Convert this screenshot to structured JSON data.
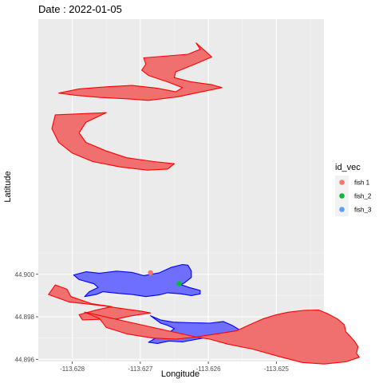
{
  "chart_data": {
    "type": "map",
    "title": "Date : 2022-01-05",
    "xlabel": "Longitude",
    "ylabel": "Latitude",
    "xlim": [
      -113.6285,
      -113.6243
    ],
    "ylim": [
      44.8959,
      44.912
    ],
    "x_ticks": [
      -113.628,
      -113.627,
      -113.626,
      -113.625
    ],
    "x_tick_labels": [
      "-113.628",
      "-113.627",
      "-113.626",
      "-113.625"
    ],
    "y_ticks": [
      44.896,
      44.898,
      44.9
    ],
    "y_tick_labels": [
      "44.896",
      "44.898",
      "44.900"
    ],
    "grid": true,
    "background": "#EBEBEB",
    "legend": {
      "title": "id_vec",
      "position": "right",
      "entries": [
        {
          "label": "fish 1",
          "color": "#F8766D"
        },
        {
          "label": "fish_2",
          "color": "#00BA38"
        },
        {
          "label": "fish_3",
          "color": "#619CFF"
        }
      ]
    },
    "points": [
      {
        "series": "fish 1",
        "x": -113.62685,
        "y": 44.90007,
        "color": "#F8766D"
      },
      {
        "series": "fish_2",
        "x": -113.62643,
        "y": 44.89956,
        "color": "#00BA38"
      }
    ],
    "polygons": [
      {
        "series": "fish_3",
        "fill": "#6F6FFF",
        "stroke": "#0000FF",
        "coords": [
          [
            -113.62798,
            44.89997
          ],
          [
            -113.6278,
            44.90012
          ],
          [
            -113.6276,
            44.90005
          ],
          [
            -113.62735,
            44.90015
          ],
          [
            -113.62712,
            44.90009
          ],
          [
            -113.62695,
            44.89994
          ],
          [
            -113.62672,
            44.90007
          ],
          [
            -113.62655,
            44.90032
          ],
          [
            -113.62638,
            44.90046
          ],
          [
            -113.6263,
            44.90043
          ],
          [
            -113.62625,
            44.90016
          ],
          [
            -113.62625,
            44.89985
          ],
          [
            -113.62635,
            44.8996
          ],
          [
            -113.6264,
            44.89951
          ],
          [
            -113.62628,
            44.89938
          ],
          [
            -113.62612,
            44.89924
          ],
          [
            -113.62612,
            44.89908
          ],
          [
            -113.62625,
            44.899
          ],
          [
            -113.6264,
            44.89908
          ],
          [
            -113.6266,
            44.89913
          ],
          [
            -113.62672,
            44.89903
          ],
          [
            -113.62692,
            44.89895
          ],
          [
            -113.62712,
            44.89905
          ],
          [
            -113.62732,
            44.8991
          ],
          [
            -113.62755,
            44.89918
          ],
          [
            -113.62765,
            44.89905
          ],
          [
            -113.62782,
            44.89895
          ],
          [
            -113.62775,
            44.89918
          ],
          [
            -113.62762,
            44.89938
          ],
          [
            -113.62768,
            44.89955
          ],
          [
            -113.6279,
            44.89975
          ]
        ]
      },
      {
        "series": "fish_3",
        "fill": "#6F6FFF",
        "stroke": "#0000FF",
        "coords": [
          [
            -113.62685,
            44.89805
          ],
          [
            -113.6267,
            44.89785
          ],
          [
            -113.62652,
            44.89775
          ],
          [
            -113.62625,
            44.89772
          ],
          [
            -113.62598,
            44.8977
          ],
          [
            -113.62578,
            44.89778
          ],
          [
            -113.62565,
            44.8976
          ],
          [
            -113.62555,
            44.8974
          ],
          [
            -113.62545,
            44.8972
          ],
          [
            -113.62535,
            44.89702
          ],
          [
            -113.6252,
            44.8969
          ],
          [
            -113.6251,
            44.89678
          ],
          [
            -113.62502,
            44.89695
          ],
          [
            -113.6252,
            44.89712
          ],
          [
            -113.6253,
            44.8973
          ],
          [
            -113.6251,
            44.89744
          ],
          [
            -113.625,
            44.89726
          ],
          [
            -113.62485,
            44.89708
          ],
          [
            -113.6249,
            44.89692
          ],
          [
            -113.6249,
            44.8968
          ],
          [
            -113.62518,
            44.89676
          ],
          [
            -113.62535,
            44.8967
          ],
          [
            -113.62555,
            44.89684
          ],
          [
            -113.6258,
            44.89696
          ],
          [
            -113.62608,
            44.897
          ],
          [
            -113.62638,
            44.89682
          ],
          [
            -113.62658,
            44.89686
          ],
          [
            -113.62675,
            44.89675
          ],
          [
            -113.62688,
            44.8968
          ],
          [
            -113.62675,
            44.89705
          ],
          [
            -113.6266,
            44.8972
          ],
          [
            -113.6265,
            44.89745
          ],
          [
            -113.6266,
            44.8976
          ],
          [
            -113.6267,
            44.8977
          ]
        ]
      },
      {
        "series": "fish 1",
        "fill": "#F07070",
        "stroke": "#FF0000",
        "coords": [
          [
            -113.62695,
            44.91018
          ],
          [
            -113.6263,
            44.91035
          ],
          [
            -113.62612,
            44.91058
          ],
          [
            -113.62618,
            44.91088
          ],
          [
            -113.62595,
            44.91022
          ],
          [
            -113.6262,
            44.90988
          ],
          [
            -113.62648,
            44.90952
          ],
          [
            -113.6265,
            44.90925
          ],
          [
            -113.62625,
            44.90905
          ],
          [
            -113.62595,
            44.90892
          ],
          [
            -113.6258,
            44.90878
          ],
          [
            -113.6261,
            44.90858
          ],
          [
            -113.62645,
            44.90835
          ],
          [
            -113.62688,
            44.90818
          ],
          [
            -113.62718,
            44.90825
          ],
          [
            -113.6276,
            44.90832
          ],
          [
            -113.62795,
            44.90842
          ],
          [
            -113.6282,
            44.90852
          ],
          [
            -113.6279,
            44.90872
          ],
          [
            -113.62748,
            44.90882
          ],
          [
            -113.62712,
            44.90888
          ],
          [
            -113.62675,
            44.90875
          ],
          [
            -113.62648,
            44.90858
          ],
          [
            -113.62638,
            44.90878
          ],
          [
            -113.6266,
            44.90905
          ],
          [
            -113.62688,
            44.90935
          ],
          [
            -113.62698,
            44.9096
          ],
          [
            -113.62692,
            44.90988
          ]
        ]
      },
      {
        "series": "fish 1",
        "fill": "#F07070",
        "stroke": "#FF0000",
        "coords": [
          [
            -113.62825,
            44.9075
          ],
          [
            -113.6283,
            44.90685
          ],
          [
            -113.6282,
            44.9062
          ],
          [
            -113.628,
            44.9057
          ],
          [
            -113.6277,
            44.9053
          ],
          [
            -113.6273,
            44.90505
          ],
          [
            -113.6269,
            44.9049
          ],
          [
            -113.6266,
            44.90495
          ],
          [
            -113.6265,
            44.9052
          ],
          [
            -113.6268,
            44.9053
          ],
          [
            -113.6272,
            44.90548
          ],
          [
            -113.6275,
            44.9058
          ],
          [
            -113.6278,
            44.9062
          ],
          [
            -113.6279,
            44.90665
          ],
          [
            -113.6278,
            44.90715
          ],
          [
            -113.6275,
            44.9076
          ]
        ]
      },
      {
        "series": "fish 1",
        "fill": "#F07070",
        "stroke": "#FF0000",
        "coords": [
          [
            -113.62825,
            44.8995
          ],
          [
            -113.62835,
            44.89905
          ],
          [
            -113.62805,
            44.8987
          ],
          [
            -113.62755,
            44.89852
          ],
          [
            -113.62725,
            44.89838
          ],
          [
            -113.62698,
            44.89826
          ],
          [
            -113.62685,
            44.89818
          ],
          [
            -113.62712,
            44.89805
          ],
          [
            -113.62735,
            44.8979
          ],
          [
            -113.6276,
            44.89788
          ],
          [
            -113.62785,
            44.89785
          ],
          [
            -113.6279,
            44.8981
          ],
          [
            -113.62765,
            44.89832
          ],
          [
            -113.62742,
            44.89848
          ],
          [
            -113.62772,
            44.89862
          ],
          [
            -113.62802,
            44.89895
          ],
          [
            -113.62808,
            44.8993
          ]
        ]
      },
      {
        "series": "fish 1",
        "fill": "#F07070",
        "stroke": "#FF0000",
        "coords": [
          [
            -113.62782,
            44.89822
          ],
          [
            -113.6276,
            44.89792
          ],
          [
            -113.6275,
            44.8975
          ],
          [
            -113.6272,
            44.8972
          ],
          [
            -113.62682,
            44.897
          ],
          [
            -113.62648,
            44.89695
          ],
          [
            -113.62618,
            44.89705
          ],
          [
            -113.62588,
            44.8972
          ],
          [
            -113.62558,
            44.89735
          ],
          [
            -113.6254,
            44.89762
          ],
          [
            -113.6252,
            44.8979
          ],
          [
            -113.625,
            44.8981
          ],
          [
            -113.62482,
            44.89822
          ],
          [
            -113.6246,
            44.8983
          ],
          [
            -113.62438,
            44.89832
          ],
          [
            -113.62425,
            44.89815
          ],
          [
            -113.6241,
            44.8979
          ],
          [
            -113.624,
            44.89762
          ],
          [
            -113.62398,
            44.8973
          ],
          [
            -113.62392,
            44.8971
          ],
          [
            -113.62385,
            44.89685
          ],
          [
            -113.6238,
            44.8966
          ],
          [
            -113.62382,
            44.89628
          ],
          [
            -113.62378,
            44.8961
          ],
          [
            -113.62398,
            44.89588
          ],
          [
            -113.6243,
            44.89578
          ],
          [
            -113.62462,
            44.89585
          ],
          [
            -113.62498,
            44.89615
          ],
          [
            -113.62535,
            44.89648
          ],
          [
            -113.62572,
            44.89672
          ],
          [
            -113.62598,
            44.89695
          ],
          [
            -113.62618,
            44.89705
          ]
        ]
      }
    ]
  }
}
